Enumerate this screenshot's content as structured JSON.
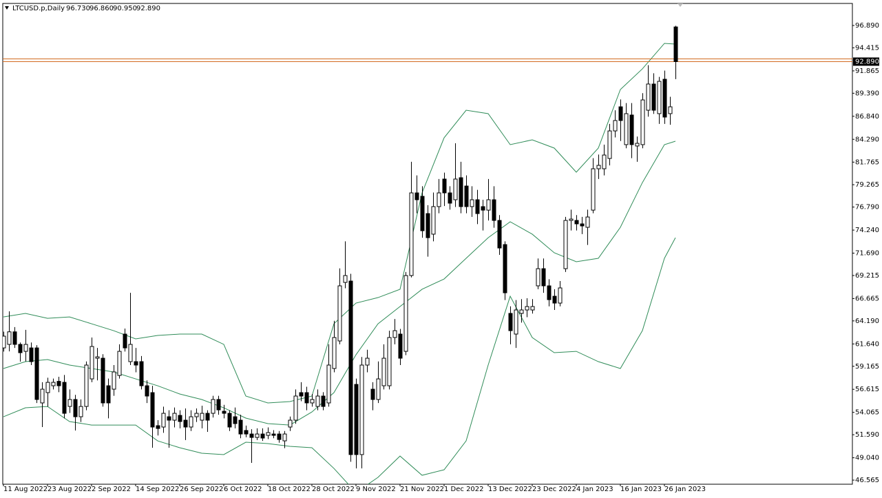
{
  "chart_data": {
    "type": "candlestick",
    "title": "LTCUSD.p,Daily",
    "header_values": [
      {
        "value": 96.73,
        "label": "96.730"
      },
      {
        "value": 96.86,
        "label": "96.860"
      },
      {
        "value": 90.95,
        "label": "90.950"
      },
      {
        "value": 92.89,
        "label": "92.890"
      }
    ],
    "categories": [
      "11 Aug 2022",
      null,
      null,
      null,
      null,
      null,
      null,
      null,
      "23 Aug 2022",
      null,
      null,
      null,
      null,
      null,
      null,
      null,
      "2 Sep 2022",
      null,
      null,
      null,
      null,
      null,
      null,
      null,
      "14 Sep 2022",
      null,
      null,
      null,
      null,
      null,
      null,
      null,
      "26 Sep 2022",
      null,
      null,
      null,
      null,
      null,
      null,
      null,
      "6 Oct 2022",
      null,
      null,
      null,
      null,
      null,
      null,
      null,
      "18 Oct 2022",
      null,
      null,
      null,
      null,
      null,
      null,
      null,
      "28 Oct 2022",
      null,
      null,
      null,
      null,
      null,
      null,
      null,
      "9 Nov 2022",
      null,
      null,
      null,
      null,
      null,
      null,
      null,
      "21 Nov 2022",
      null,
      null,
      null,
      null,
      null,
      null,
      null,
      "1 Dec 2022",
      null,
      null,
      null,
      null,
      null,
      null,
      null,
      "13 Dec 2022",
      null,
      null,
      null,
      null,
      null,
      null,
      null,
      "23 Dec 2022",
      null,
      null,
      null,
      null,
      null,
      null,
      null,
      "4 Jan 2023",
      null,
      null,
      null,
      null,
      null,
      null,
      null,
      "16 Jan 2023",
      null,
      null,
      null,
      null,
      null,
      null,
      null,
      "26 Jan 2023",
      null,
      null
    ],
    "open": [
      61.2,
      61.59,
      62.98,
      61.59,
      60.82,
      61.2,
      61.2,
      55.11,
      56.25,
      57.01,
      57.5,
      57.39,
      54.72,
      55.49,
      53.58,
      54.72,
      57.77,
      60.06,
      60.06,
      57.01,
      56.63,
      58.15,
      62.73,
      59.68,
      59.68,
      59.68,
      57.01,
      56.25,
      52.59,
      52.44,
      53.58,
      53.2,
      53.73,
      53.2,
      52.44,
      53.58,
      53.2,
      53.96,
      53.96,
      55.49,
      54.19,
      53.96,
      53.58,
      53.2,
      52.06,
      51.67,
      51.29,
      51.67,
      51.52,
      51.67,
      51.67,
      50.91,
      52.44,
      53.2,
      56.25,
      56.25,
      55.11,
      54.72,
      55.87,
      55.11,
      58.92,
      61.97,
      68.45,
      68.6,
      57.16,
      49.39,
      59.3,
      56.63,
      55.49,
      57.01,
      57.01,
      62.35,
      62.73,
      60.82,
      69.21,
      78.36,
      77.98,
      76.07,
      73.79,
      76.84,
      79.89,
      78.36,
      77.6,
      80.04,
      79.12,
      76.84,
      77.6,
      76.84,
      76.45,
      77.6,
      75.31,
      72.64,
      65.02,
      62.73,
      65.02,
      65.4,
      65.4,
      68.07,
      69.97,
      68.07,
      66.92,
      66.16,
      69.97,
      75.31,
      75.31,
      74.93,
      74.55,
      76.45,
      81.03,
      81.03,
      82.17,
      85.22,
      87.89,
      83.7,
      86.98,
      83.55,
      83.7,
      87.51,
      90.41,
      87.13,
      90.94,
      87.13,
      96.73
    ],
    "high": [
      63.0,
      65.25,
      63.5,
      61.8,
      63.2,
      61.8,
      61.5,
      57.4,
      57.9,
      57.8,
      58.0,
      58.2,
      56.6,
      56.0,
      55.5,
      59.7,
      62.35,
      61.2,
      60.5,
      57.8,
      59.3,
      61.6,
      63.34,
      67.3,
      61.2,
      60.3,
      57.6,
      57.0,
      53.2,
      54.7,
      54.3,
      54.6,
      54.3,
      54.5,
      54.3,
      54.5,
      54.8,
      54.3,
      55.9,
      55.9,
      54.9,
      54.3,
      54.6,
      53.8,
      52.6,
      52.2,
      52.3,
      52.3,
      52.4,
      52.1,
      52.0,
      52.0,
      53.6,
      56.6,
      57.4,
      56.9,
      56.1,
      56.6,
      56.3,
      61.6,
      64.2,
      70.0,
      73.0,
      69.4,
      57.8,
      60.2,
      61.0,
      57.4,
      59.7,
      61.6,
      63.1,
      64.4,
      63.3,
      69.6,
      81.8,
      80.3,
      79.1,
      77.0,
      78.4,
      79.9,
      80.6,
      79.1,
      83.85,
      81.8,
      80.3,
      79.1,
      78.7,
      77.6,
      79.9,
      79.1,
      75.9,
      73.0,
      65.8,
      66.5,
      66.6,
      66.7,
      66.6,
      71.1,
      71.1,
      68.8,
      67.7,
      68.6,
      75.7,
      76.5,
      75.9,
      75.7,
      76.5,
      82.2,
      82.6,
      83.7,
      86.0,
      87.5,
      88.7,
      88.3,
      88.3,
      84.6,
      89.4,
      92.5,
      91.6,
      91.2,
      91.9,
      89.0,
      96.86
    ],
    "low": [
      60.8,
      60.82,
      61.2,
      59.68,
      59.7,
      59.3,
      55.1,
      52.44,
      54.7,
      56.6,
      56.3,
      53.4,
      54.0,
      52.06,
      53.0,
      54.3,
      57.4,
      57.6,
      54.7,
      53.4,
      55.9,
      57.8,
      60.8,
      59.3,
      58.5,
      56.6,
      55.1,
      50.15,
      51.5,
      51.8,
      50.15,
      52.4,
      52.3,
      51.0,
      52.0,
      53.0,
      52.3,
      51.9,
      53.5,
      53.8,
      53.4,
      52.0,
      52.3,
      51.2,
      51.3,
      48.47,
      51.0,
      50.9,
      51.1,
      51.2,
      50.7,
      50.1,
      52.0,
      52.8,
      55.3,
      54.3,
      54.7,
      54.3,
      54.3,
      54.7,
      58.5,
      61.6,
      67.8,
      48.6,
      47.86,
      47.86,
      58.5,
      54.3,
      55.1,
      56.6,
      56.6,
      61.6,
      59.3,
      60.4,
      69.0,
      76.1,
      73.4,
      71.3,
      73.0,
      76.1,
      76.9,
      76.5,
      76.8,
      76.1,
      76.1,
      75.7,
      74.9,
      74.2,
      75.3,
      74.5,
      71.5,
      66.5,
      61.6,
      61.2,
      64.0,
      64.6,
      65.0,
      67.7,
      67.3,
      65.8,
      65.4,
      65.8,
      69.6,
      74.2,
      74.2,
      73.8,
      72.6,
      76.1,
      79.9,
      80.3,
      81.4,
      84.5,
      84.1,
      83.3,
      82.2,
      81.8,
      83.3,
      86.8,
      87.1,
      86.0,
      86.0,
      85.9,
      90.95
    ],
    "close": [
      62.5,
      62.98,
      61.59,
      60.67,
      61.59,
      59.68,
      55.49,
      56.63,
      57.39,
      57.39,
      57.01,
      53.96,
      55.49,
      53.58,
      54.72,
      59.3,
      61.36,
      60.21,
      55.11,
      55.11,
      58.54,
      60.82,
      61.2,
      61.59,
      59.3,
      57.01,
      55.87,
      52.44,
      52.28,
      53.96,
      53.2,
      53.96,
      53.05,
      52.44,
      53.58,
      53.96,
      53.96,
      53.2,
      55.49,
      54.34,
      53.96,
      52.44,
      52.82,
      51.67,
      51.67,
      51.29,
      51.67,
      51.22,
      51.83,
      51.52,
      51.06,
      51.67,
      53.2,
      55.87,
      55.87,
      55.11,
      55.49,
      55.87,
      54.72,
      59.3,
      62.35,
      68.07,
      69.21,
      49.39,
      49.39,
      59.3,
      60.06,
      55.49,
      57.77,
      60.06,
      62.35,
      63.11,
      60.06,
      69.21,
      78.36,
      77.6,
      74.17,
      73.4,
      76.84,
      78.36,
      78.36,
      77.22,
      79.89,
      76.84,
      76.84,
      77.6,
      76.07,
      76.45,
      77.6,
      75.31,
      72.26,
      67.3,
      63.11,
      65.4,
      65.4,
      65.78,
      65.78,
      69.97,
      68.07,
      66.54,
      66.16,
      67.84,
      75.31,
      75.46,
      74.93,
      74.7,
      75.69,
      81.03,
      81.41,
      82.55,
      85.22,
      86.37,
      86.37,
      87.13,
      83.7,
      83.85,
      88.65,
      90.41,
      87.51,
      90.71,
      86.75,
      87.89,
      92.89
    ],
    "bull_color": "#ffffff",
    "bear_color": "#000000",
    "bands": {
      "color": "#2e8b57",
      "x": [
        0,
        4,
        8,
        12,
        16,
        20,
        24,
        28,
        32,
        36,
        40,
        44,
        48,
        52,
        56,
        60,
        64,
        68,
        72,
        76,
        80,
        84,
        88,
        92,
        96,
        100,
        104,
        108,
        112,
        116,
        120,
        122
      ],
      "upper": [
        64.63,
        65.02,
        64.48,
        64.63,
        63.87,
        63.11,
        62.2,
        62.58,
        62.73,
        62.73,
        61.59,
        55.87,
        55.11,
        55.26,
        55.87,
        63.87,
        66.16,
        66.77,
        67.69,
        78.36,
        84.46,
        87.51,
        87.13,
        83.7,
        84.23,
        83.32,
        80.65,
        83.32,
        89.8,
        92.09,
        94.91,
        94.83
      ],
      "middle": [
        58.92,
        59.68,
        59.91,
        59.3,
        58.92,
        58.54,
        57.77,
        57.01,
        56.1,
        55.49,
        54.57,
        53.43,
        52.82,
        52.66,
        54.11,
        56.25,
        60.44,
        63.87,
        65.78,
        67.69,
        68.83,
        71.12,
        73.4,
        75.16,
        73.79,
        71.73,
        70.74,
        71.12,
        74.55,
        79.5,
        83.7,
        84.08
      ],
      "lower": [
        53.58,
        54.57,
        54.72,
        53.05,
        52.66,
        52.66,
        52.66,
        50.91,
        50.15,
        49.54,
        49.39,
        50.76,
        50.61,
        50.3,
        50.15,
        47.86,
        45.19,
        46.87,
        49.23,
        47.1,
        47.71,
        50.91,
        59.3,
        66.92,
        62.35,
        60.67,
        60.82,
        59.68,
        58.92,
        63.11,
        71.12,
        73.4
      ]
    },
    "current_price": {
      "value": 92.89,
      "label": "92.890"
    },
    "current_price_color": "#d2691e",
    "ylim": [
      46.11,
      99.33
    ],
    "yticks": [
      {
        "value": 96.89,
        "label": "96.890"
      },
      94.415,
      91.865,
      {
        "value": 89.39,
        "label": "89.390"
      },
      {
        "value": 86.84,
        "label": "86.840"
      },
      {
        "value": 84.29,
        "label": "84.290"
      },
      81.765,
      79.265,
      {
        "value": 76.79,
        "label": "76.790"
      },
      {
        "value": 74.24,
        "label": "74.240"
      },
      {
        "value": 71.69,
        "label": "71.690"
      },
      69.215,
      66.665,
      {
        "value": 64.19,
        "label": "64.190"
      },
      {
        "value": 61.64,
        "label": "61.640"
      },
      59.165,
      56.615,
      54.065,
      {
        "value": 51.59,
        "label": "51.590"
      },
      {
        "value": 49.04,
        "label": "49.040"
      },
      46.565
    ]
  }
}
